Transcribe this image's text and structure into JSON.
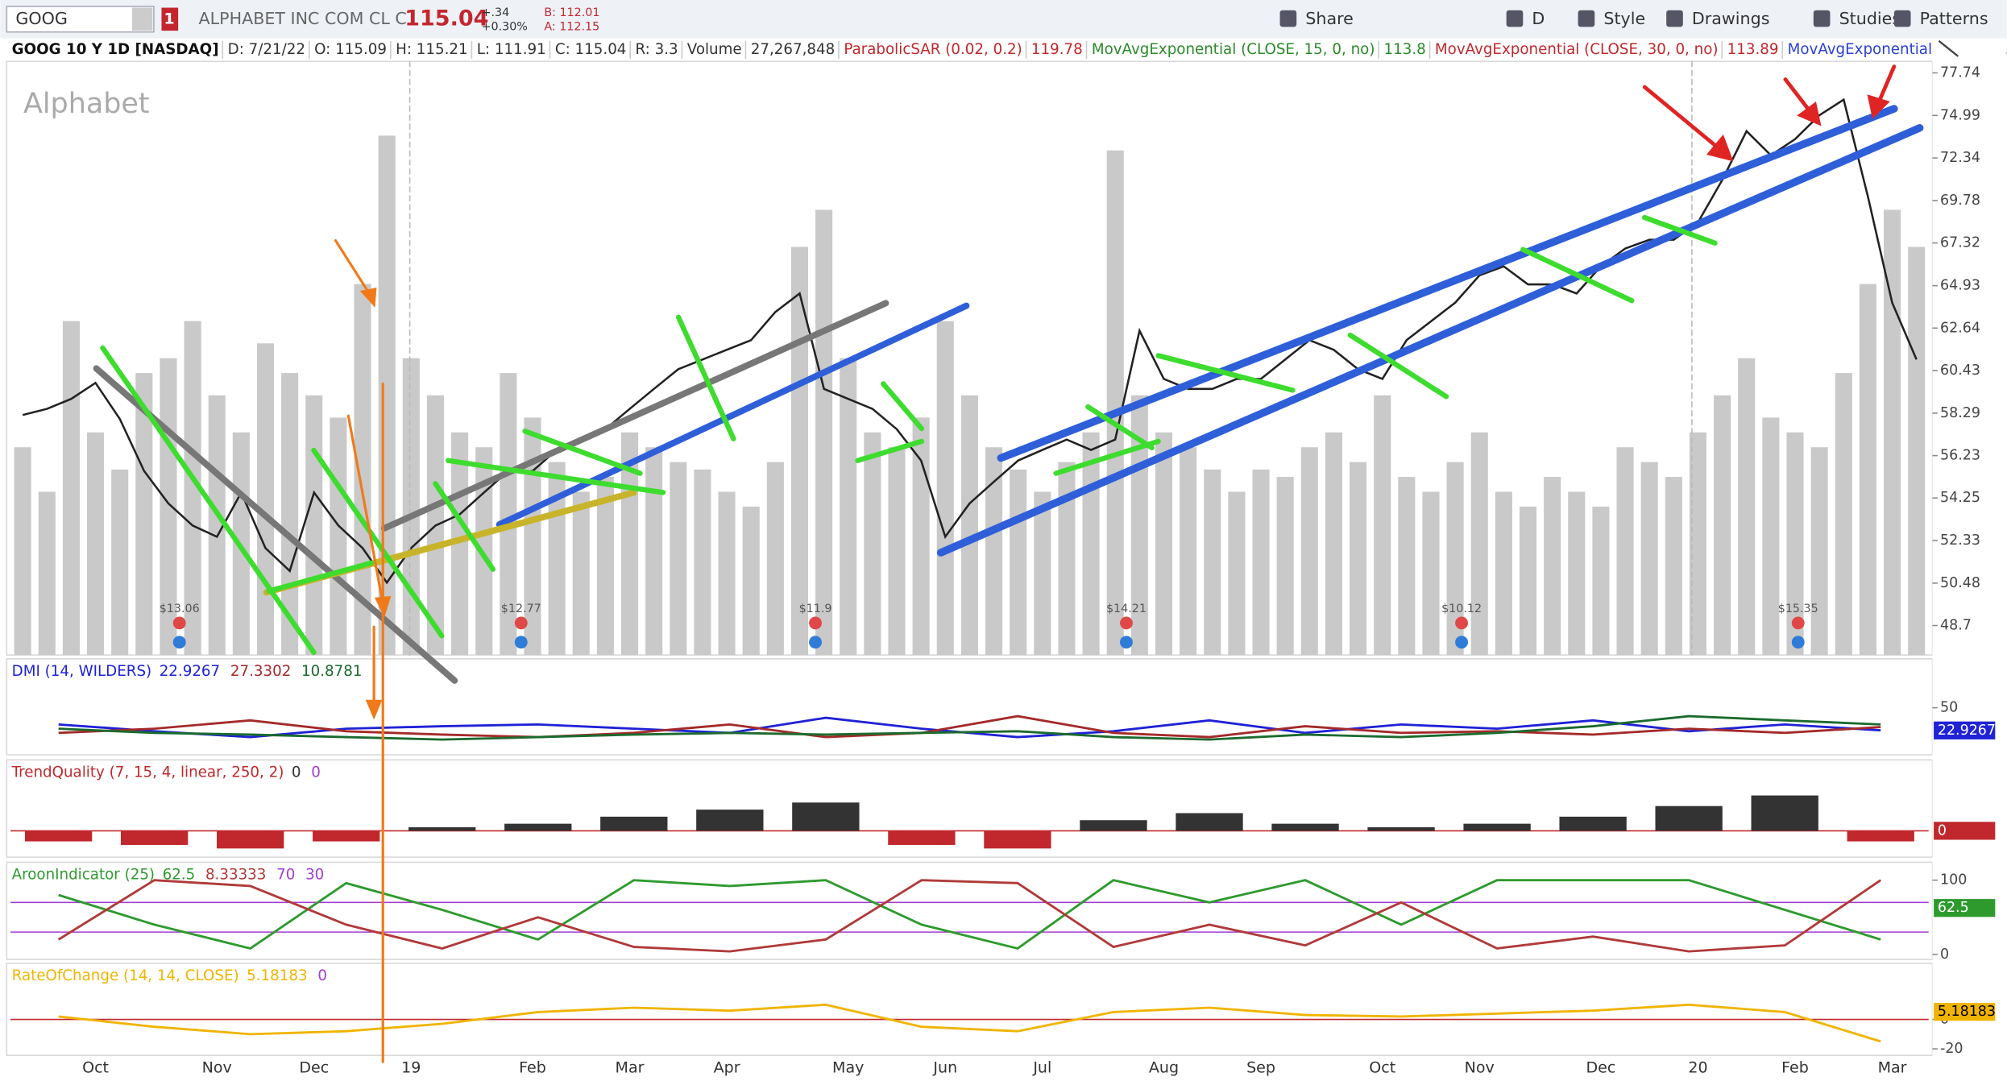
{
  "toolbar": {
    "symbol": "GOOG",
    "alert_count": 1,
    "company": "ALPHABET INC COM CL C",
    "last": 115.04,
    "change": "+.34",
    "change_pct": "+0.30%",
    "bid": "B: 112.01",
    "ask": "A: 112.15",
    "buttons": [
      "Share",
      "D",
      "Style",
      "Drawings",
      "Studies",
      "Patterns"
    ]
  },
  "info_bar": {
    "items": [
      {
        "text": "GOOG 10 Y 1D [NASDAQ]",
        "color": "#111"
      },
      {
        "text": "D: 7/21/22",
        "color": "#333"
      },
      {
        "text": "O: 115.09",
        "color": "#333"
      },
      {
        "text": "H: 115.21",
        "color": "#333"
      },
      {
        "text": "L: 111.91",
        "color": "#333"
      },
      {
        "text": "C: 115.04",
        "color": "#333"
      },
      {
        "text": "R: 3.3",
        "color": "#333"
      },
      {
        "text": "Volume",
        "color": "#333"
      },
      {
        "text": "27,267,848",
        "color": "#333"
      },
      {
        "text": "ParabolicSAR (0.02, 0.2)",
        "color": "#c0282d"
      },
      {
        "text": "119.78",
        "color": "#c0282d"
      },
      {
        "text": "MovAvgExponential (CLOSE, 15, 0, no)",
        "color": "#2a8a2a"
      },
      {
        "text": "113.8",
        "color": "#2a8a2a"
      },
      {
        "text": "MovAvgExponential (CLOSE, 30, 0, no)",
        "color": "#c0282d"
      },
      {
        "text": "113.89",
        "color": "#c0282d"
      },
      {
        "text": "MovAvgExponential (CLOSE,...",
        "color": "#2a3fd4"
      }
    ]
  },
  "earnings_labels": [
    "$13.06",
    "$12.77",
    "$11.9",
    "$14.21",
    "$10.12",
    "$15.35"
  ],
  "chart_data": [
    {
      "type": "line",
      "title": "Alphabet",
      "log_scale": true,
      "ylim": [
        47.5,
        78.5
      ],
      "y2lim": [
        0,
        80
      ],
      "yticks": [
        77.74,
        74.99,
        72.34,
        69.78,
        67.32,
        64.93,
        62.64,
        60.43,
        58.29,
        56.23,
        54.25,
        52.33,
        50.48,
        48.7
      ],
      "categories": [
        null,
        null,
        null,
        "Oct",
        null,
        null,
        null,
        null,
        "Nov",
        null,
        null,
        null,
        "Dec",
        null,
        null,
        null,
        "19",
        null,
        null,
        null,
        null,
        "Feb",
        null,
        null,
        null,
        "Mar",
        null,
        null,
        null,
        "Apr",
        null,
        null,
        null,
        null,
        "May",
        null,
        null,
        null,
        "Jun",
        null,
        null,
        null,
        "Jul",
        null,
        null,
        null,
        null,
        "Aug",
        null,
        null,
        null,
        "Sep",
        null,
        null,
        null,
        null,
        "Oct",
        null,
        null,
        null,
        "Nov",
        null,
        null,
        null,
        null,
        "Dec",
        null,
        null,
        null,
        "20",
        null,
        null,
        null,
        "Feb",
        null,
        null,
        null,
        "Mar",
        null
      ],
      "series": [
        {
          "name": "Close",
          "color": "#222222",
          "values": [
            58.2,
            58.5,
            59.0,
            59.8,
            58.0,
            55.5,
            54.0,
            53.0,
            52.5,
            54.5,
            52.0,
            51.0,
            54.5,
            53.0,
            52.0,
            50.5,
            52.0,
            53.0,
            53.5,
            54.5,
            55.5,
            55.5,
            56.5,
            57.0,
            57.5,
            58.5,
            59.5,
            60.5,
            61.0,
            61.5,
            62.0,
            63.5,
            64.5,
            59.5,
            59.0,
            58.5,
            57.5,
            56.0,
            52.5,
            54.0,
            55.0,
            56.0,
            56.5,
            57.0,
            56.5,
            57.0,
            62.5,
            60.0,
            59.5,
            59.5,
            60.0,
            60.0,
            61.0,
            62.0,
            61.5,
            60.5,
            60.0,
            62.0,
            63.0,
            64.0,
            65.5,
            66.0,
            65.0,
            65.0,
            64.5,
            66.0,
            67.0,
            67.5,
            67.5,
            68.5,
            71.0,
            74.0,
            72.5,
            73.5,
            75.0,
            76.0,
            70.0,
            64.0,
            61.0
          ]
        },
        {
          "name": "Volume",
          "color": "#c9c9c9",
          "axis": "y2",
          "values": [
            28,
            22,
            45,
            30,
            25,
            38,
            40,
            45,
            35,
            30,
            42,
            38,
            35,
            32,
            50,
            70,
            40,
            35,
            30,
            28,
            38,
            32,
            26,
            22,
            24,
            30,
            28,
            26,
            25,
            22,
            20,
            26,
            55,
            60,
            40,
            30,
            28,
            32,
            45,
            35,
            28,
            25,
            22,
            26,
            30,
            68,
            35,
            30,
            28,
            25,
            22,
            25,
            24,
            28,
            30,
            26,
            35,
            24,
            22,
            26,
            30,
            22,
            20,
            24,
            22,
            20,
            28,
            26,
            24,
            30,
            35,
            40,
            32,
            30,
            28,
            38,
            50,
            60,
            55
          ]
        }
      ]
    },
    {
      "type": "line",
      "title": "DMI (14, WILDERS)",
      "ylim": [
        0,
        87
      ],
      "yticks": [
        50
      ],
      "readouts": [
        22.9267,
        27.3302,
        10.8781
      ],
      "series": [
        {
          "color": "#1f22d6",
          "values": [
            30,
            22,
            15,
            25,
            28,
            30,
            25,
            20,
            38,
            25,
            15,
            22,
            35,
            20,
            30,
            25,
            35,
            22,
            30,
            23
          ]
        },
        {
          "color": "#a52a2a",
          "values": [
            20,
            25,
            35,
            22,
            18,
            15,
            20,
            30,
            15,
            20,
            40,
            20,
            15,
            28,
            20,
            22,
            18,
            25,
            20,
            27
          ]
        },
        {
          "color": "#1b6b2e",
          "values": [
            25,
            20,
            18,
            15,
            12,
            15,
            18,
            20,
            18,
            20,
            22,
            15,
            12,
            18,
            15,
            20,
            28,
            40,
            35,
            30
          ]
        }
      ]
    },
    {
      "type": "bar",
      "title": "TrendQuality (7, 15, 4, linear, 250, 2)",
      "ylim": [
        -6,
        15
      ],
      "yticks": [],
      "readouts": [
        0,
        0
      ],
      "series": [
        {
          "color": "#333333",
          "values": [
            -3,
            -4,
            -5,
            -3,
            1,
            2,
            4,
            6,
            8,
            -4,
            -5,
            3,
            5,
            2,
            1,
            2,
            4,
            7,
            10,
            -3
          ]
        }
      ]
    },
    {
      "type": "line",
      "title": "AroonIndicator (25)",
      "ylim": [
        0,
        100
      ],
      "yticks": [
        100,
        0
      ],
      "readouts": [
        62.5,
        8.33333,
        70,
        30
      ],
      "series": [
        {
          "color": "#2e9a2e",
          "values": [
            80,
            40,
            8,
            96,
            60,
            20,
            100,
            92,
            100,
            40,
            8,
            100,
            70,
            100,
            40,
            100,
            100,
            100,
            60,
            20
          ]
        },
        {
          "color": "#b03a3a",
          "values": [
            20,
            100,
            92,
            40,
            8,
            50,
            10,
            4,
            20,
            100,
            96,
            10,
            40,
            12,
            70,
            8,
            24,
            4,
            12,
            100
          ]
        }
      ]
    },
    {
      "type": "line",
      "title": "RateOfChange (14, 14, CLOSE)",
      "ylim": [
        -21,
        26
      ],
      "yticks": [
        0,
        -20
      ],
      "readouts": [
        5.18183,
        0
      ],
      "series": [
        {
          "color": "#f0b400",
          "values": [
            2,
            -5,
            -10,
            -8,
            -3,
            5,
            8,
            6,
            10,
            -5,
            -8,
            5,
            8,
            3,
            2,
            4,
            6,
            10,
            5,
            -15
          ]
        }
      ]
    }
  ]
}
